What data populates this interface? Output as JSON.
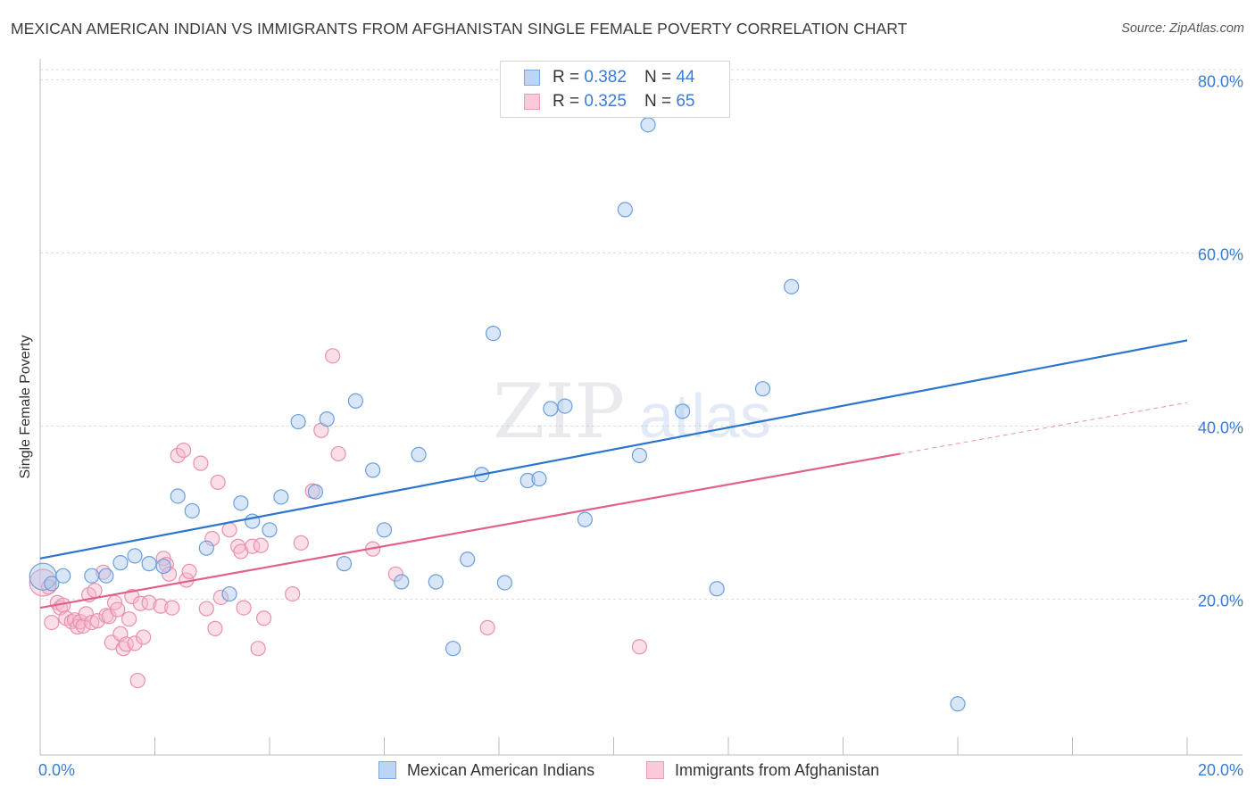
{
  "title": "MEXICAN AMERICAN INDIAN VS IMMIGRANTS FROM AFGHANISTAN SINGLE FEMALE POVERTY CORRELATION CHART",
  "source": "Source: ZipAtlas.com",
  "watermark": {
    "zip": "ZIP",
    "atlas": "atlas"
  },
  "legend_top": [
    {
      "r_label": "R = ",
      "r_value": "0.382",
      "n_label": "N = ",
      "n_value": "44",
      "color": "#a9c8f0"
    },
    {
      "r_label": "R = ",
      "r_value": "0.325",
      "n_label": "N = ",
      "n_value": "65",
      "color": "#f7b8cc"
    }
  ],
  "legend_bottom": [
    {
      "label": "Mexican American Indians",
      "color": "#a9c8f0"
    },
    {
      "label": "Immigrants from Afghanistan",
      "color": "#f7b8cc"
    }
  ],
  "chart_data": {
    "type": "scatter",
    "title": "MEXICAN AMERICAN INDIAN VS IMMIGRANTS FROM AFGHANISTAN SINGLE FEMALE POVERTY CORRELATION CHART",
    "xlabel": "",
    "ylabel": "Single Female Poverty",
    "xlim": [
      0,
      20
    ],
    "ylim": [
      2,
      82
    ],
    "x_tick_labels": [
      "0.0%",
      "20.0%"
    ],
    "y_ticks": [
      20,
      40,
      60,
      80
    ],
    "y_tick_labels": [
      "20.0%",
      "40.0%",
      "60.0%",
      "80.0%"
    ],
    "grid": true,
    "colors": {
      "blue_fill": "#a9c8f0",
      "blue_stroke": "#6a9fdc",
      "blue_line": "#2d74cc",
      "pink_fill": "#f7b8cc",
      "pink_stroke": "#e890ad",
      "pink_line": "#e0628c",
      "tick_text": "#3a7bd5"
    },
    "series": [
      {
        "name": "Mexican American Indians",
        "R": 0.382,
        "N": 44,
        "trend": {
          "x": [
            0,
            20
          ],
          "y": [
            24.7,
            49.9
          ]
        },
        "points": [
          {
            "x": 0.05,
            "y": 22.6,
            "big": true
          },
          {
            "x": 0.2,
            "y": 21.8
          },
          {
            "x": 0.4,
            "y": 22.7
          },
          {
            "x": 0.9,
            "y": 22.7
          },
          {
            "x": 1.15,
            "y": 22.7
          },
          {
            "x": 1.4,
            "y": 24.2
          },
          {
            "x": 1.65,
            "y": 25.0
          },
          {
            "x": 1.9,
            "y": 24.1
          },
          {
            "x": 2.15,
            "y": 23.8
          },
          {
            "x": 2.4,
            "y": 31.9
          },
          {
            "x": 2.65,
            "y": 30.2
          },
          {
            "x": 2.9,
            "y": 25.9
          },
          {
            "x": 3.3,
            "y": 20.6
          },
          {
            "x": 3.5,
            "y": 31.1
          },
          {
            "x": 3.7,
            "y": 29.0
          },
          {
            "x": 4.0,
            "y": 28.0
          },
          {
            "x": 4.2,
            "y": 31.8
          },
          {
            "x": 4.5,
            "y": 40.5
          },
          {
            "x": 4.8,
            "y": 32.4
          },
          {
            "x": 5.0,
            "y": 40.8
          },
          {
            "x": 5.3,
            "y": 24.1
          },
          {
            "x": 5.5,
            "y": 42.9
          },
          {
            "x": 5.8,
            "y": 34.9
          },
          {
            "x": 6.0,
            "y": 28.0
          },
          {
            "x": 6.3,
            "y": 22.0
          },
          {
            "x": 6.6,
            "y": 36.7
          },
          {
            "x": 6.9,
            "y": 22.0
          },
          {
            "x": 7.2,
            "y": 14.3
          },
          {
            "x": 7.45,
            "y": 24.6
          },
          {
            "x": 7.7,
            "y": 34.4
          },
          {
            "x": 7.9,
            "y": 50.7
          },
          {
            "x": 8.1,
            "y": 21.9
          },
          {
            "x": 8.5,
            "y": 33.7
          },
          {
            "x": 8.7,
            "y": 33.9
          },
          {
            "x": 8.9,
            "y": 42.0
          },
          {
            "x": 9.15,
            "y": 42.3
          },
          {
            "x": 9.5,
            "y": 29.2
          },
          {
            "x": 10.2,
            "y": 65.0
          },
          {
            "x": 10.45,
            "y": 36.6
          },
          {
            "x": 10.6,
            "y": 74.8
          },
          {
            "x": 11.2,
            "y": 41.7
          },
          {
            "x": 11.8,
            "y": 21.2
          },
          {
            "x": 12.6,
            "y": 44.3
          },
          {
            "x": 13.1,
            "y": 56.1
          },
          {
            "x": 16.0,
            "y": 7.9
          }
        ]
      },
      {
        "name": "Immigrants from Afghanistan",
        "R": 0.325,
        "N": 65,
        "trend": {
          "x": [
            0,
            15
          ],
          "y": [
            19.0,
            36.8
          ]
        },
        "trend_dashed": {
          "x": [
            15,
            20
          ],
          "y": [
            36.8,
            42.7
          ]
        },
        "points": [
          {
            "x": 0.05,
            "y": 21.9,
            "big": true
          },
          {
            "x": 0.15,
            "y": 21.4
          },
          {
            "x": 0.2,
            "y": 17.3
          },
          {
            "x": 0.3,
            "y": 19.6
          },
          {
            "x": 0.35,
            "y": 19.0
          },
          {
            "x": 0.4,
            "y": 19.3
          },
          {
            "x": 0.45,
            "y": 17.8
          },
          {
            "x": 0.55,
            "y": 17.4
          },
          {
            "x": 0.6,
            "y": 17.6
          },
          {
            "x": 0.65,
            "y": 16.8
          },
          {
            "x": 0.7,
            "y": 17.4
          },
          {
            "x": 0.75,
            "y": 16.9
          },
          {
            "x": 0.8,
            "y": 18.3
          },
          {
            "x": 0.85,
            "y": 20.5
          },
          {
            "x": 0.9,
            "y": 17.3
          },
          {
            "x": 0.95,
            "y": 21.0
          },
          {
            "x": 1.0,
            "y": 17.5
          },
          {
            "x": 1.1,
            "y": 23.1
          },
          {
            "x": 1.15,
            "y": 18.1
          },
          {
            "x": 1.2,
            "y": 18.0
          },
          {
            "x": 1.25,
            "y": 15.0
          },
          {
            "x": 1.3,
            "y": 19.6
          },
          {
            "x": 1.35,
            "y": 18.8
          },
          {
            "x": 1.4,
            "y": 16.0
          },
          {
            "x": 1.45,
            "y": 14.3
          },
          {
            "x": 1.5,
            "y": 14.8
          },
          {
            "x": 1.55,
            "y": 17.7
          },
          {
            "x": 1.6,
            "y": 20.3
          },
          {
            "x": 1.65,
            "y": 14.9
          },
          {
            "x": 1.7,
            "y": 10.6
          },
          {
            "x": 1.75,
            "y": 19.5
          },
          {
            "x": 1.8,
            "y": 15.6
          },
          {
            "x": 1.9,
            "y": 19.6
          },
          {
            "x": 2.1,
            "y": 19.2
          },
          {
            "x": 2.15,
            "y": 24.7
          },
          {
            "x": 2.2,
            "y": 24.0
          },
          {
            "x": 2.25,
            "y": 22.9
          },
          {
            "x": 2.3,
            "y": 19.0
          },
          {
            "x": 2.4,
            "y": 36.6
          },
          {
            "x": 2.5,
            "y": 37.2
          },
          {
            "x": 2.55,
            "y": 22.2
          },
          {
            "x": 2.6,
            "y": 23.2
          },
          {
            "x": 2.8,
            "y": 35.7
          },
          {
            "x": 2.9,
            "y": 18.9
          },
          {
            "x": 3.0,
            "y": 27.0
          },
          {
            "x": 3.05,
            "y": 16.6
          },
          {
            "x": 3.1,
            "y": 33.5
          },
          {
            "x": 3.15,
            "y": 20.2
          },
          {
            "x": 3.3,
            "y": 28.0
          },
          {
            "x": 3.45,
            "y": 26.1
          },
          {
            "x": 3.5,
            "y": 25.5
          },
          {
            "x": 3.55,
            "y": 19.0
          },
          {
            "x": 3.7,
            "y": 26.1
          },
          {
            "x": 3.8,
            "y": 14.3
          },
          {
            "x": 3.85,
            "y": 26.2
          },
          {
            "x": 3.9,
            "y": 17.8
          },
          {
            "x": 4.4,
            "y": 20.6
          },
          {
            "x": 4.55,
            "y": 26.5
          },
          {
            "x": 4.75,
            "y": 32.5
          },
          {
            "x": 4.9,
            "y": 39.5
          },
          {
            "x": 5.1,
            "y": 48.1
          },
          {
            "x": 5.2,
            "y": 36.8
          },
          {
            "x": 5.8,
            "y": 25.8
          },
          {
            "x": 6.2,
            "y": 22.9
          },
          {
            "x": 7.8,
            "y": 16.7
          },
          {
            "x": 10.45,
            "y": 14.5
          }
        ]
      }
    ]
  }
}
